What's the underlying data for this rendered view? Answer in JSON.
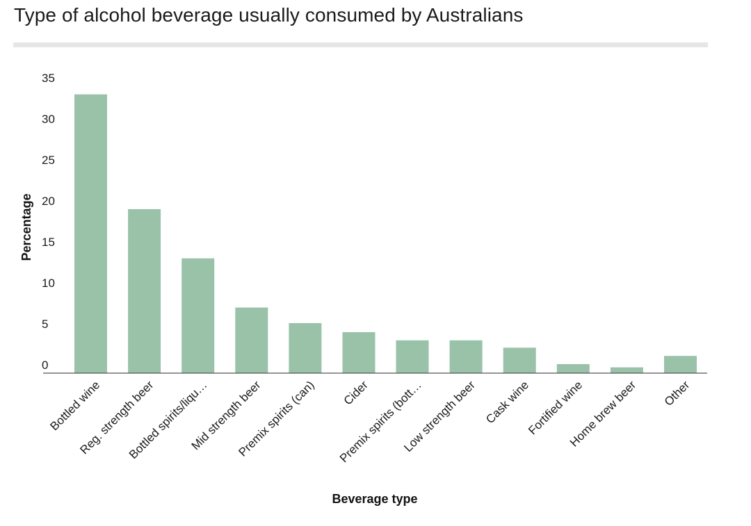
{
  "chart_data": {
    "type": "bar",
    "title": "Type of alcohol beverage usually consumed by Australians",
    "xlabel": "Beverage type",
    "ylabel": "Percentage",
    "ylim": [
      0,
      35
    ],
    "yticks": [
      0,
      5,
      10,
      15,
      20,
      25,
      30,
      35
    ],
    "categories": [
      "Bottled wine",
      "Reg. strength beer",
      "Bottled spirits/liqu…",
      "Mid strength beer",
      "Premix spirits (can)",
      "Cider",
      "Premix spirits (bott…",
      "Low strength beer",
      "Cask wine",
      "Fortified wine",
      "Home brew beer",
      "Other"
    ],
    "values": [
      34.0,
      20.0,
      14.0,
      8.0,
      6.1,
      5.0,
      4.0,
      4.0,
      3.1,
      1.1,
      0.7,
      2.1
    ],
    "bar_color": "#99c2a9",
    "grid": false,
    "legend": "none"
  }
}
